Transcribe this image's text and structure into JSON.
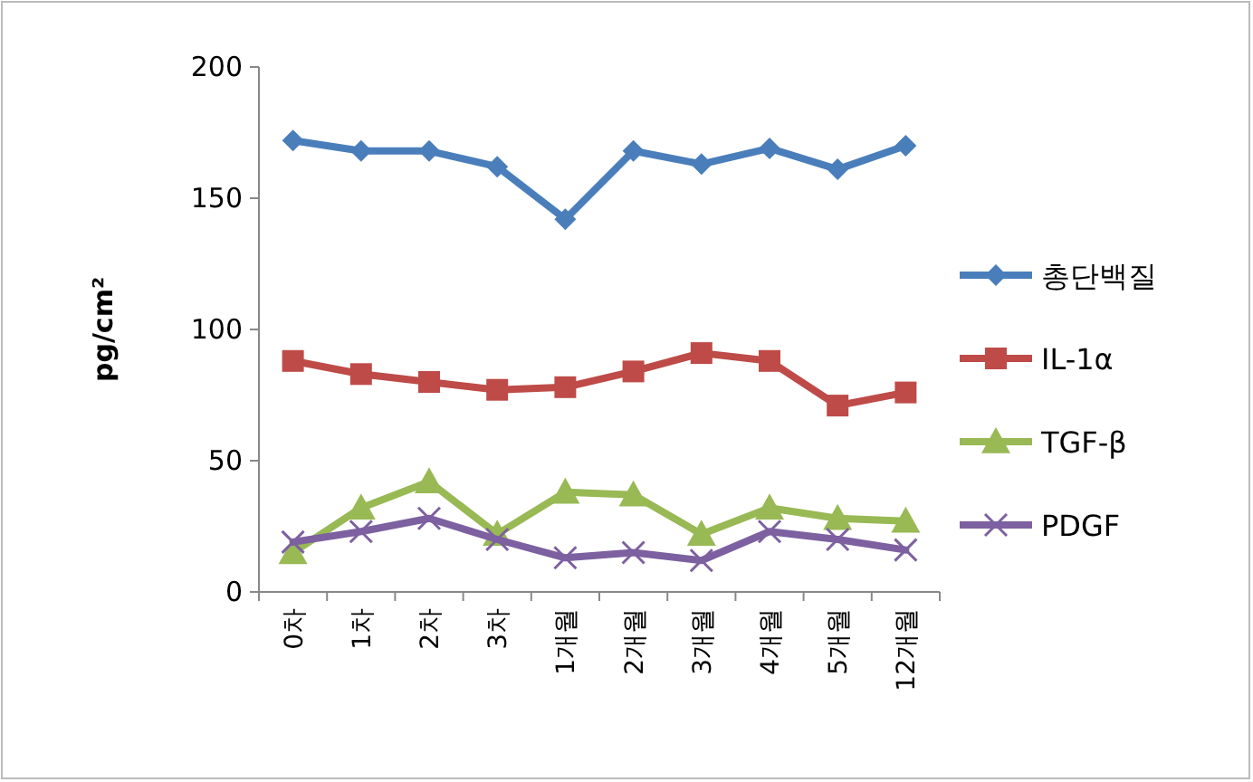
{
  "chart_data": {
    "type": "line",
    "ylabel": "pg/cm²",
    "categories": [
      "0차",
      "1차",
      "2차",
      "3차",
      "1개월",
      "2개월",
      "3개월",
      "4개월",
      "5개월",
      "12개월"
    ],
    "series": [
      {
        "name": "총단백질",
        "color": "#4a7ebb",
        "marker": "diamond",
        "values": [
          172,
          168,
          168,
          162,
          142,
          168,
          163,
          169,
          161,
          170
        ]
      },
      {
        "name": "IL-1α",
        "color": "#be4b48",
        "marker": "square",
        "values": [
          88,
          83,
          80,
          77,
          78,
          84,
          91,
          88,
          71,
          76
        ]
      },
      {
        "name": "TGF-β",
        "color": "#98b954",
        "marker": "triangle",
        "values": [
          15,
          32,
          42,
          22,
          38,
          37,
          22,
          32,
          28,
          27
        ]
      },
      {
        "name": "PDGF",
        "color": "#7d60a0",
        "marker": "cross",
        "values": [
          19,
          23,
          28,
          20,
          13,
          15,
          12,
          23,
          20,
          16
        ]
      }
    ],
    "ylim": [
      0,
      200
    ],
    "yticks": [
      0,
      50,
      100,
      150,
      200
    ],
    "grid": false,
    "legend": "right"
  }
}
